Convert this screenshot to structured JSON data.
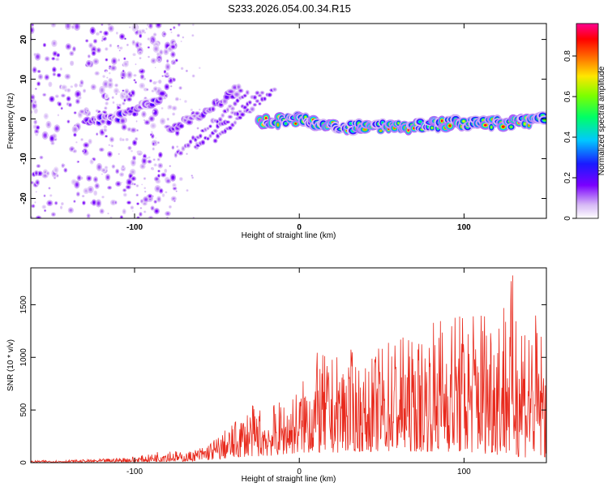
{
  "figure": {
    "title": "S233.2026.054.00.34.R15"
  },
  "chart_data": [
    {
      "type": "heatmap",
      "xlabel": "Height of straight line (km)",
      "ylabel": "Frequency (Hz)",
      "xlim": [
        -163,
        150
      ],
      "ylim": [
        -25,
        24
      ],
      "x_ticks": [
        -100,
        0,
        100
      ],
      "y_ticks": [
        -20,
        -10,
        0,
        10,
        20
      ],
      "colorbar": {
        "label": "Normalized spectral amplitude",
        "range": [
          0,
          0.96
        ],
        "ticks": [
          0,
          0.2,
          0.4,
          0.6,
          0.8
        ],
        "colormap": "white-purple-blue-cyan-green-yellow-red-magenta"
      },
      "ridges": [
        {
          "x": [
            -130,
            -110,
            -95,
            -82
          ],
          "freq": [
            -1,
            0,
            3,
            6
          ],
          "amplitude": 0.25
        },
        {
          "x": [
            -80,
            -65,
            -50,
            -35
          ],
          "freq": [
            -3,
            0,
            4,
            8
          ],
          "amplitude": 0.2
        },
        {
          "x": [
            -25,
            0,
            20,
            60,
            100,
            130,
            150
          ],
          "freq": [
            -1,
            0,
            -2,
            -2,
            -1,
            -1,
            0
          ],
          "amplitude": 0.9
        }
      ],
      "grid": false
    },
    {
      "type": "line",
      "xlabel": "Height of straight line (km)",
      "ylabel": "SNR (10 * v/v)",
      "xlim": [
        -163,
        150
      ],
      "ylim": [
        0,
        1850
      ],
      "x_ticks": [
        -100,
        0,
        100
      ],
      "y_ticks": [
        0,
        500,
        1000,
        1500
      ],
      "series": [
        {
          "color": "#e8291c",
          "x": [
            -163,
            -140,
            -120,
            -100,
            -90,
            -82,
            -70,
            -60,
            -50,
            -40,
            -30,
            -20,
            -10,
            0,
            10,
            20,
            30,
            40,
            50,
            60,
            70,
            80,
            90,
            100,
            110,
            120,
            130,
            140,
            150
          ],
          "envelope": [
            20,
            25,
            35,
            60,
            80,
            150,
            90,
            150,
            250,
            380,
            550,
            520,
            600,
            720,
            1050,
            1000,
            1100,
            900,
            1150,
            1280,
            1150,
            1350,
            1480,
            1450,
            1560,
            1620,
            1800,
            1560,
            1200
          ],
          "baseline": [
            10,
            12,
            15,
            20,
            25,
            30,
            40,
            60,
            100,
            150,
            200,
            200,
            250,
            300,
            300,
            300,
            350,
            350,
            350,
            350,
            350,
            350,
            350,
            300,
            300,
            250,
            200,
            150,
            150
          ]
        }
      ],
      "grid": false
    }
  ]
}
